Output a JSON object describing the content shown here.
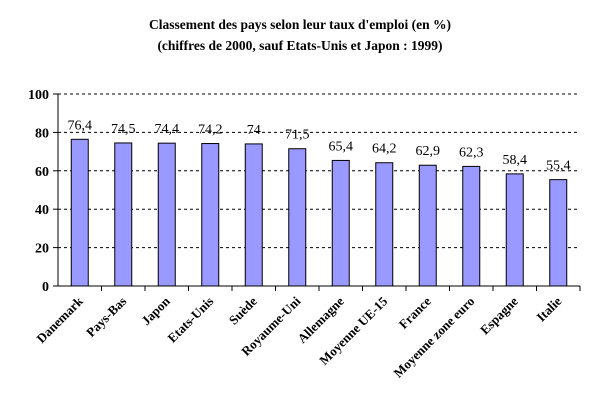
{
  "chart_data": {
    "type": "bar",
    "title": "Classement des pays selon leur taux d'emploi (en %)",
    "subtitle": "(chiffres de 2000, sauf Etats-Unis et Japon : 1999)",
    "xlabel": "",
    "ylabel": "",
    "ylim": [
      0,
      100
    ],
    "yticks": [
      "0",
      "20",
      "40",
      "60",
      "80",
      "100"
    ],
    "grid": true,
    "legend": "none",
    "bar_color": "#9999ff",
    "categories": [
      "Danemark",
      "Pays-Bas",
      "Japon",
      "Etats-Unis",
      "Suède",
      "Royaume-Uni",
      "Allemagne",
      "Moyenne UE-15",
      "France",
      "Moyenne zone euro",
      "Espagne",
      "Italie"
    ],
    "values": [
      76.4,
      74.5,
      74.4,
      74.2,
      74,
      71.5,
      65.4,
      64.2,
      62.9,
      62.3,
      58.4,
      55.4
    ],
    "data_labels": [
      "76,4",
      "74,5",
      "74,4",
      "74,2",
      "74",
      "71,5",
      "65,4",
      "64,2",
      "62,9",
      "62,3",
      "58,4",
      "55,4"
    ]
  }
}
